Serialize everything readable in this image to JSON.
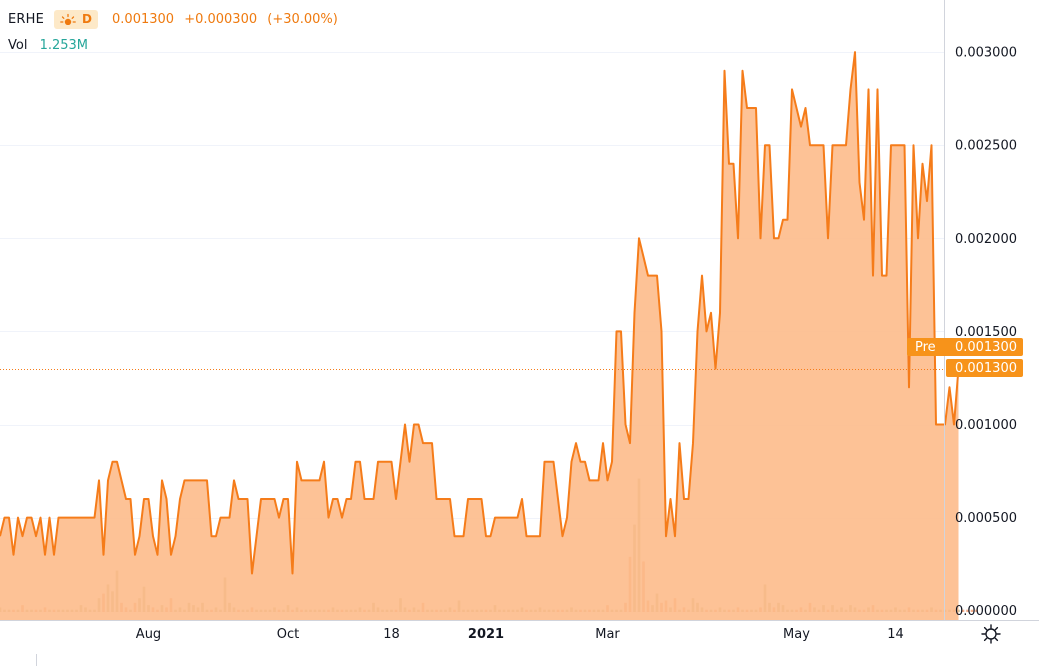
{
  "header": {
    "symbol": "ERHE",
    "interval": "D",
    "last": "0.001300",
    "change": "+0.000300",
    "change_pct": "(+30.00%)",
    "vol_label": "Vol",
    "vol_value": "1.253M"
  },
  "price_labels": {
    "pre_tag": "Pre",
    "pre_value": "0.001300",
    "last_value": "0.001300"
  },
  "colors": {
    "line": "#f57c1a",
    "area": "#fdb988",
    "vol_orange": "#f5a27a",
    "vol_green": "#c2b889",
    "grid": "#f0f3fa",
    "axis_text": "#131722",
    "badge": "#f7931a"
  },
  "chart_data": {
    "type": "area",
    "ylim": [
      -5e-05,
      0.00328
    ],
    "y_ticks": [
      "0.003000",
      "0.002500",
      "0.002000",
      "0.001500",
      "0.001000",
      "0.000500",
      "0.000000"
    ],
    "y_tick_values": [
      0.003,
      0.0025,
      0.002,
      0.0015,
      0.001,
      0.0005,
      0
    ],
    "x_tick_labels": [
      "Aug",
      "Oct",
      "18",
      "2021",
      "Mar",
      "May",
      "14"
    ],
    "x_tick_index": [
      33,
      64,
      87,
      108,
      135,
      177,
      199
    ],
    "series": [
      {
        "values": [
          0.0004,
          0.0005,
          0.0005,
          0.0003,
          0.0005,
          0.0004,
          0.0005,
          0.0005,
          0.0004,
          0.0005,
          0.0003,
          0.0005,
          0.0003,
          0.0005,
          0.0005,
          0.0005,
          0.0005,
          0.0005,
          0.0005,
          0.0005,
          0.0005,
          0.0005,
          0.0007,
          0.0003,
          0.0007,
          0.0008,
          0.0008,
          0.0007,
          0.0006,
          0.0006,
          0.0003,
          0.0004,
          0.0006,
          0.0006,
          0.0004,
          0.0003,
          0.0007,
          0.0006,
          0.0003,
          0.0004,
          0.0006,
          0.0007,
          0.0007,
          0.0007,
          0.0007,
          0.0007,
          0.0007,
          0.0004,
          0.0004,
          0.0005,
          0.0005,
          0.0005,
          0.0007,
          0.0006,
          0.0006,
          0.0006,
          0.0002,
          0.0004,
          0.0006,
          0.0006,
          0.0006,
          0.0006,
          0.0005,
          0.0006,
          0.0006,
          0.0002,
          0.0008,
          0.0007,
          0.0007,
          0.0007,
          0.0007,
          0.0007,
          0.0008,
          0.0005,
          0.0006,
          0.0006,
          0.0005,
          0.0006,
          0.0006,
          0.0008,
          0.0008,
          0.0006,
          0.0006,
          0.0006,
          0.0008,
          0.0008,
          0.0008,
          0.0008,
          0.0006,
          0.0008,
          0.001,
          0.0008,
          0.001,
          0.001,
          0.0009,
          0.0009,
          0.0009,
          0.0006,
          0.0006,
          0.0006,
          0.0006,
          0.0004,
          0.0004,
          0.0004,
          0.0006,
          0.0006,
          0.0006,
          0.0006,
          0.0004,
          0.0004,
          0.0005,
          0.0005,
          0.0005,
          0.0005,
          0.0005,
          0.0005,
          0.0006,
          0.0004,
          0.0004,
          0.0004,
          0.0004,
          0.0008,
          0.0008,
          0.0008,
          0.0006,
          0.0004,
          0.0005,
          0.0008,
          0.0009,
          0.0008,
          0.0008,
          0.0007,
          0.0007,
          0.0007,
          0.0009,
          0.0007,
          0.0008,
          0.0015,
          0.0015,
          0.001,
          0.0009,
          0.0016,
          0.002,
          0.0019,
          0.0018,
          0.0018,
          0.0018,
          0.0015,
          0.0004,
          0.0006,
          0.0004,
          0.0009,
          0.0006,
          0.0006,
          0.0009,
          0.0015,
          0.0018,
          0.0015,
          0.0016,
          0.0013,
          0.0016,
          0.0029,
          0.0024,
          0.0024,
          0.002,
          0.0029,
          0.0027,
          0.0027,
          0.0027,
          0.002,
          0.0025,
          0.0025,
          0.002,
          0.002,
          0.0021,
          0.0021,
          0.0028,
          0.0027,
          0.0026,
          0.0027,
          0.0025,
          0.0025,
          0.0025,
          0.0025,
          0.002,
          0.0025,
          0.0025,
          0.0025,
          0.0025,
          0.0028,
          0.003,
          0.0023,
          0.0021,
          0.0028,
          0.0018,
          0.0028,
          0.0018,
          0.0018,
          0.0025,
          0.0025,
          0.0025,
          0.0025,
          0.0012,
          0.0025,
          0.002,
          0.0024,
          0.0022,
          0.0025,
          0.001,
          0.001,
          0.001,
          0.0012,
          0.001,
          0.0013
        ]
      }
    ],
    "volume": [
      2,
      1,
      1,
      1,
      1,
      3,
      1,
      1,
      1,
      1,
      2,
      1,
      1,
      1,
      1,
      1,
      1,
      1,
      3,
      2,
      1,
      1,
      6,
      8,
      12,
      9,
      18,
      4,
      2,
      1,
      4,
      6,
      11,
      3,
      2,
      1,
      3,
      2,
      6,
      1,
      2,
      1,
      4,
      3,
      2,
      4,
      1,
      1,
      2,
      1,
      15,
      4,
      2,
      1,
      1,
      1,
      2,
      1,
      1,
      1,
      1,
      2,
      1,
      1,
      3,
      1,
      2,
      1,
      1,
      1,
      1,
      1,
      1,
      1,
      2,
      1,
      1,
      1,
      1,
      1,
      2,
      1,
      1,
      4,
      2,
      1,
      1,
      1,
      1,
      6,
      2,
      1,
      2,
      1,
      4,
      1,
      1,
      1,
      1,
      1,
      2,
      1,
      5,
      1,
      1,
      1,
      1,
      1,
      1,
      1,
      3,
      1,
      1,
      1,
      1,
      1,
      2,
      1,
      1,
      1,
      2,
      1,
      1,
      1,
      1,
      1,
      1,
      2,
      1,
      1,
      1,
      1,
      1,
      1,
      1,
      3,
      1,
      1,
      1,
      4,
      24,
      38,
      58,
      22,
      5,
      3,
      8,
      4,
      5,
      2,
      6,
      1,
      2,
      1,
      6,
      4,
      2,
      1,
      1,
      1,
      2,
      1,
      1,
      1,
      2,
      1,
      1,
      1,
      1,
      2,
      12,
      4,
      2,
      4,
      3,
      1,
      1,
      1,
      2,
      1,
      4,
      2,
      1,
      3,
      1,
      3,
      1,
      2,
      1,
      3,
      2,
      1,
      1,
      2,
      3,
      1,
      1,
      1,
      1,
      2,
      1,
      1,
      2,
      1,
      1,
      1,
      1,
      2,
      1,
      1,
      1,
      1,
      1,
      1,
      1,
      1,
      1,
      1
    ]
  }
}
